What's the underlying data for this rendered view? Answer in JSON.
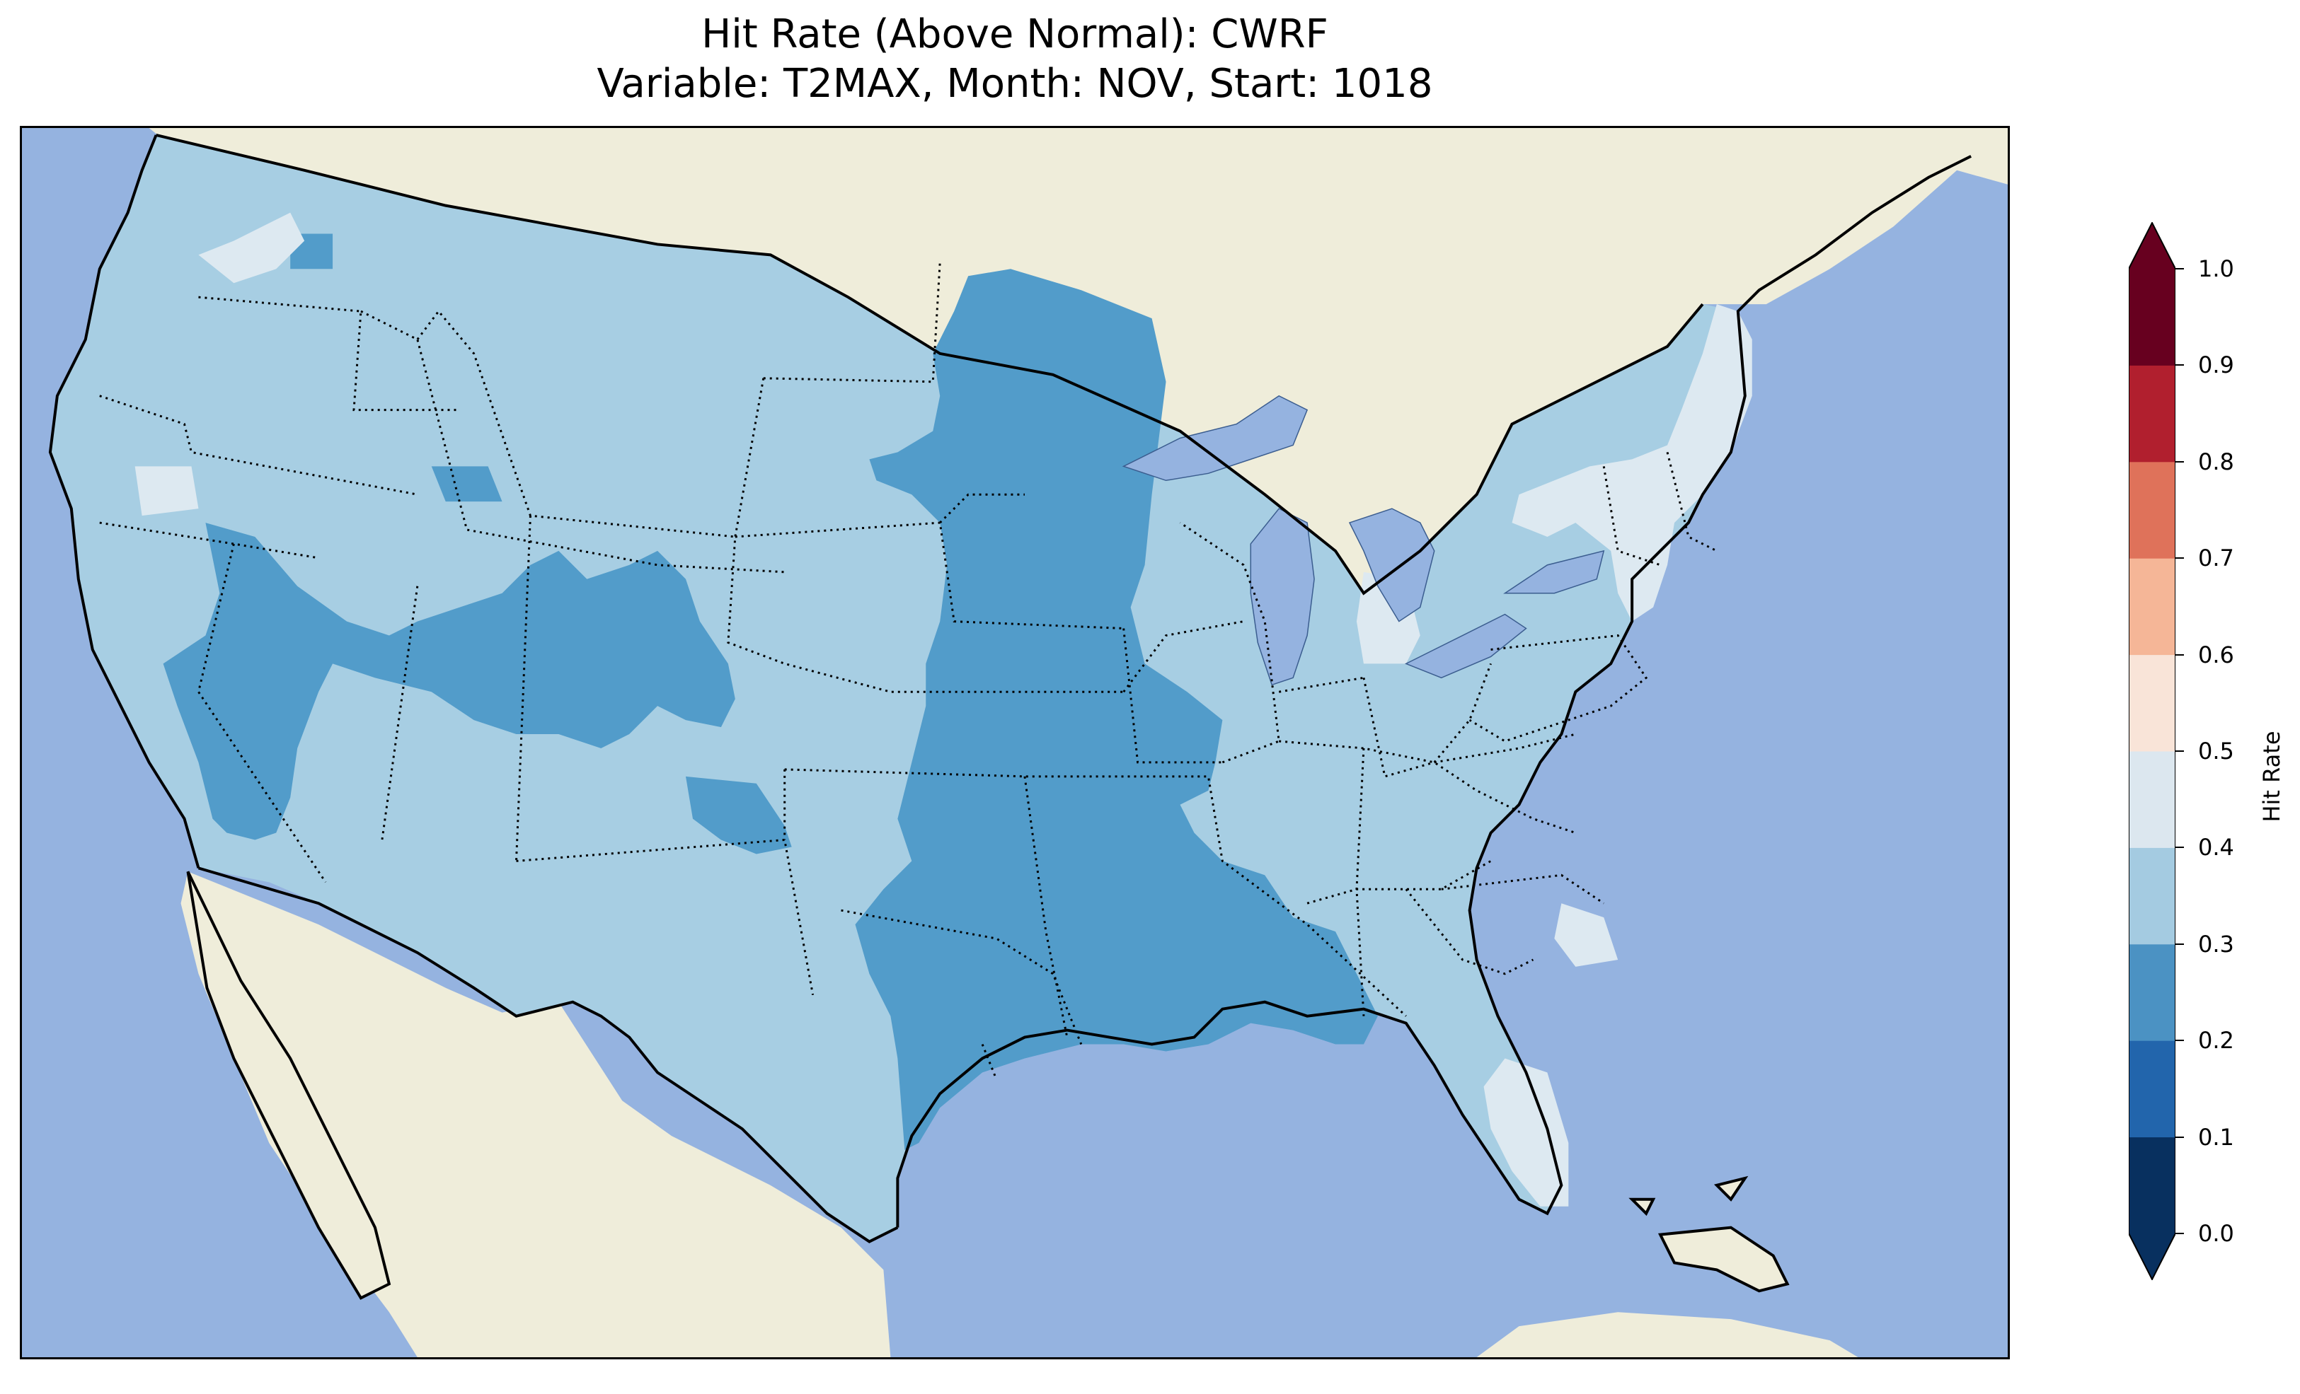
{
  "title": {
    "line1": "Hit Rate (Above Normal): CWRF",
    "line2": "Variable: T2MAX, Month: NOV, Start: 1018"
  },
  "colors": {
    "ocean": "#95b3e0",
    "land": "#efedda",
    "lake": "#95b3e0",
    "level_0_2_0_3": "#529cca",
    "level_0_3_0_4": "#a7cee3",
    "level_0_4_0_5": "#dde9f1"
  },
  "colorbar": {
    "label": "Hit Rate",
    "ticks": [
      "0.0",
      "0.1",
      "0.2",
      "0.3",
      "0.4",
      "0.5",
      "0.6",
      "0.7",
      "0.8",
      "0.9",
      "1.0"
    ],
    "colors": [
      "#08305f",
      "#2265ac",
      "#4b92c3",
      "#a4cbe1",
      "#dce7ef",
      "#f9e4d8",
      "#f5b697",
      "#df725a",
      "#b11f2e",
      "#67001f"
    ],
    "extend": "both"
  },
  "map": {
    "projection": "Lambert conformal",
    "region": "Contiguous United States",
    "borders": "state (dotted), national, coastlines"
  }
}
